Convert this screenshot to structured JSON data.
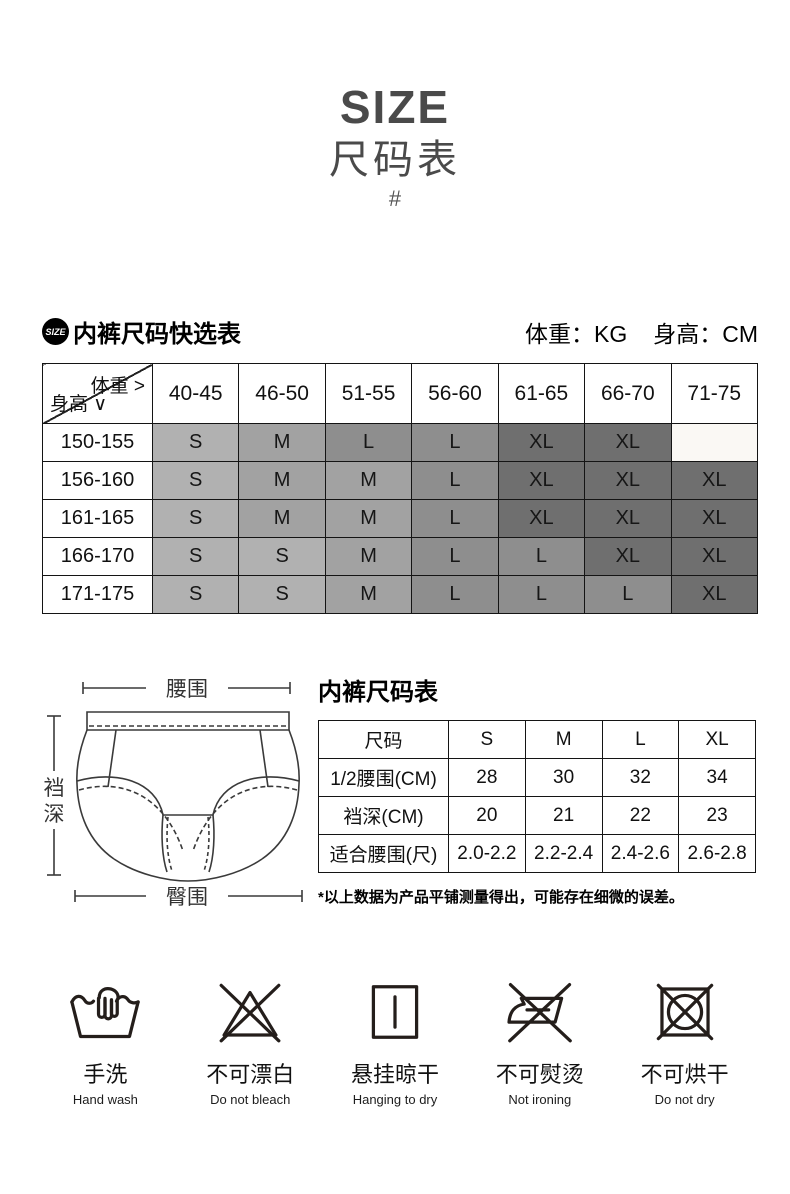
{
  "page": {
    "title": "SIZE",
    "subtitle": "尺码表",
    "hash": "#"
  },
  "quick_table": {
    "badge": "SIZE",
    "heading": "内裤尺码快选表",
    "weight_unit": "体重：KG",
    "height_unit": "身高：CM",
    "corner_top": "体重 >",
    "corner_bottom": "身高 ∨",
    "weight_columns": [
      "40-45",
      "46-50",
      "51-55",
      "56-60",
      "61-65",
      "66-70",
      "71-75"
    ],
    "rows": [
      {
        "height": "150-155",
        "cells": [
          "S",
          "M",
          "L",
          "L",
          "XL",
          "XL",
          ""
        ]
      },
      {
        "height": "156-160",
        "cells": [
          "S",
          "M",
          "M",
          "L",
          "XL",
          "XL",
          "XL"
        ]
      },
      {
        "height": "161-165",
        "cells": [
          "S",
          "M",
          "M",
          "L",
          "XL",
          "XL",
          "XL"
        ]
      },
      {
        "height": "166-170",
        "cells": [
          "S",
          "S",
          "M",
          "L",
          "L",
          "XL",
          "XL"
        ]
      },
      {
        "height": "171-175",
        "cells": [
          "S",
          "S",
          "M",
          "L",
          "L",
          "L",
          "XL"
        ]
      }
    ],
    "shade_colors": {
      "S": "#b1b1b1",
      "M": "#a2a2a2",
      "L": "#8e8e8e",
      "XL": "#6f6f6f",
      "empty": "#faf8f4"
    }
  },
  "diagram": {
    "waist_label": "腰围",
    "crotch_label_1": "裆",
    "crotch_label_2": "深",
    "hip_label": "臀围"
  },
  "size_table": {
    "heading": "内裤尺码表",
    "columns": [
      "尺码",
      "S",
      "M",
      "L",
      "XL"
    ],
    "rows": [
      {
        "label": "1/2腰围(CM)",
        "values": [
          "28",
          "30",
          "32",
          "34"
        ]
      },
      {
        "label": "裆深(CM)",
        "values": [
          "20",
          "21",
          "22",
          "23"
        ]
      },
      {
        "label": "适合腰围(尺)",
        "values": [
          "2.0-2.2",
          "2.2-2.4",
          "2.4-2.6",
          "2.6-2.8"
        ]
      }
    ],
    "note": "*以上数据为产品平铺测量得出，可能存在细微的误差。"
  },
  "care": {
    "items": [
      {
        "icon": "hand-wash-icon",
        "zh": "手洗",
        "en": "Hand wash"
      },
      {
        "icon": "do-not-bleach-icon",
        "zh": "不可漂白",
        "en": "Do not bleach"
      },
      {
        "icon": "hanging-to-dry-icon",
        "zh": "悬挂晾干",
        "en": "Hanging to dry"
      },
      {
        "icon": "do-not-iron-icon",
        "zh": "不可熨烫",
        "en": "Not ironing"
      },
      {
        "icon": "do-not-dry-icon",
        "zh": "不可烘干",
        "en": "Do not dry"
      }
    ]
  }
}
